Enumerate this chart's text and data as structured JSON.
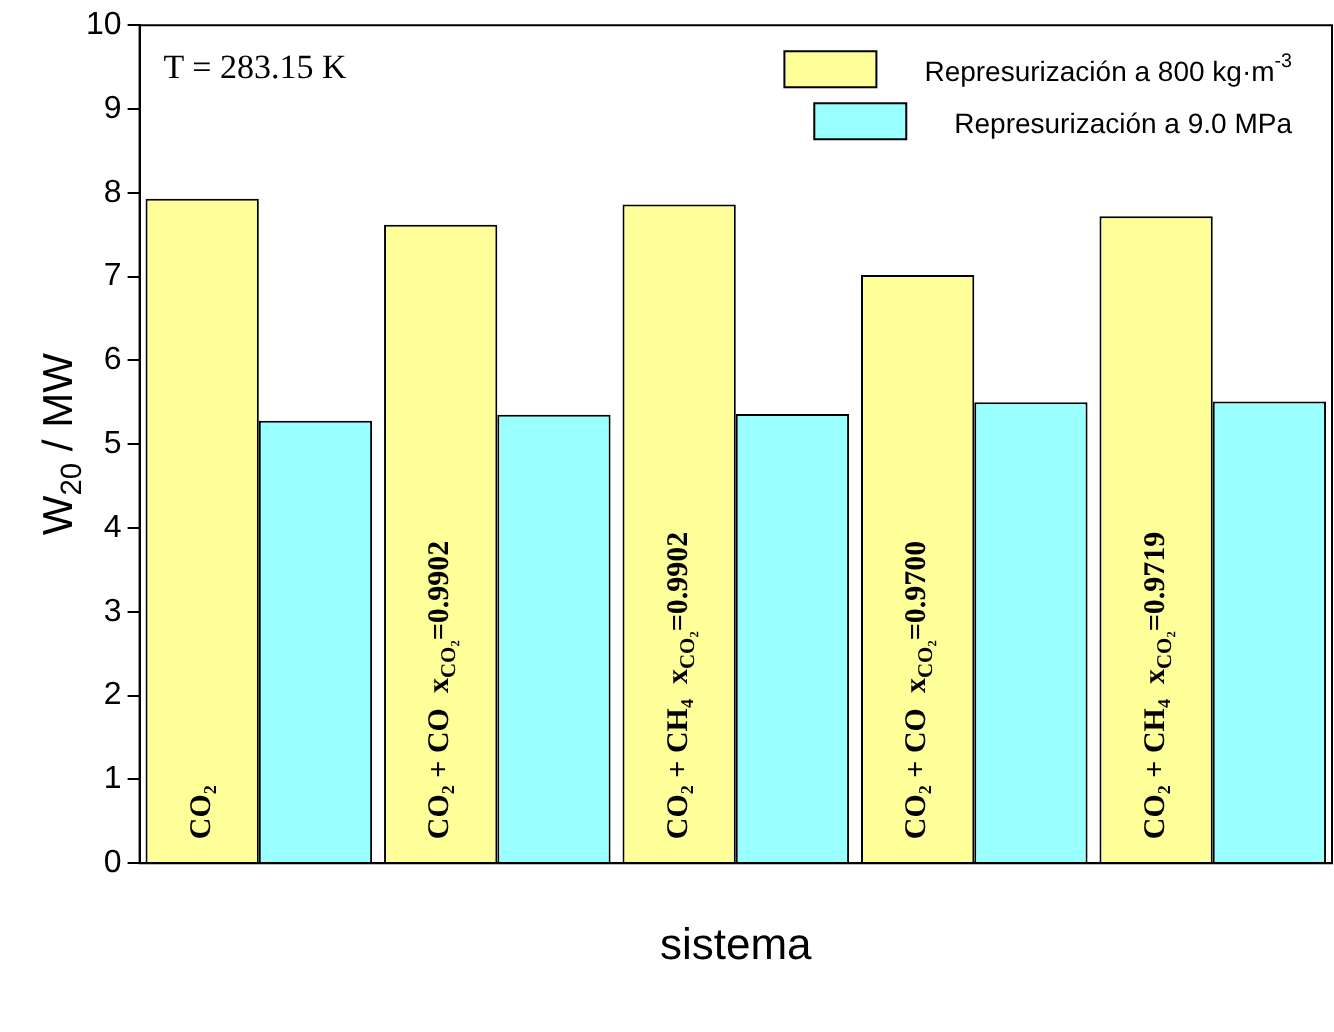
{
  "chart_data": {
    "type": "bar",
    "xlabel": "sistema",
    "ylabel": "W$_{20}$ / MW",
    "categories": [
      "CO₂",
      "CO₂ + CO  x$_{CO₂}$=0.9902",
      "CO₂ + CH₄  x$_{CO₂}$=0.9902",
      "CO₂ + CO  x$_{CO₂}$=0.9700",
      "CO₂ + CH₄  x$_{CO₂}$=0.9719"
    ],
    "series": [
      {
        "name": "Represurización a 800 kg·m$^{-3}$",
        "color": "#ffff99",
        "values": [
          7.93,
          7.62,
          7.86,
          7.02,
          7.72
        ]
      },
      {
        "name": "Represurización a 9.0 MPa",
        "color": "#99ffff",
        "values": [
          5.28,
          5.35,
          5.36,
          5.5,
          5.51
        ]
      }
    ],
    "ylim": [
      0,
      10
    ],
    "yticks": [
      0,
      1,
      2,
      3,
      4,
      5,
      6,
      7,
      8,
      9,
      10
    ],
    "grid": false,
    "legend": "top right",
    "annotations": [
      "T = 283.15 K"
    ]
  }
}
